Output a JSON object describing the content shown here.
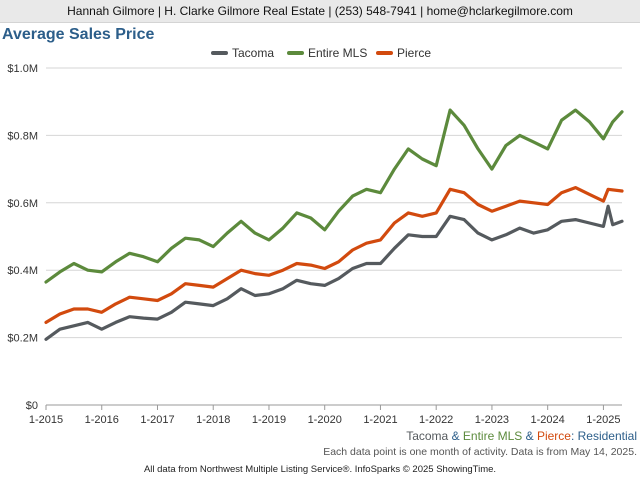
{
  "header": {
    "contact_line": "Hannah Gilmore | H. Clarke Gilmore Real Estate | (253) 548-7941 | home@hclarkegilmore.com"
  },
  "footer": {
    "subtitle_parts": [
      {
        "text": "Tacoma",
        "color": "#555a5e"
      },
      {
        "text": " & ",
        "color": "#2c5e8a"
      },
      {
        "text": "Entire MLS",
        "color": "#5c8a3c"
      },
      {
        "text": " & ",
        "color": "#2c5e8a"
      },
      {
        "text": "Pierce",
        "color": "#d24a0e"
      },
      {
        "text": ": Residential",
        "color": "#2c5e8a"
      }
    ],
    "note": "Each data point is one month of activity. Data is from May 14, 2025.",
    "source": "All data from Northwest Multiple Listing Service®. InfoSparks © 2025 ShowingTime."
  },
  "chart_data": {
    "type": "line",
    "title": "Average Sales Price",
    "ylim": [
      0,
      1000000
    ],
    "y_ticks": [
      0,
      200000,
      400000,
      600000,
      800000,
      1000000
    ],
    "y_tick_labels": [
      "$0",
      "$0.2M",
      "$0.4M",
      "$0.6M",
      "$0.8M",
      "$1.0M"
    ],
    "x_range": [
      "2015-01",
      "2025-05"
    ],
    "x_ticks": [
      "2015-01",
      "2016-01",
      "2017-01",
      "2018-01",
      "2019-01",
      "2020-01",
      "2021-01",
      "2022-01",
      "2023-01",
      "2024-01",
      "2025-01"
    ],
    "x_tick_labels": [
      "1-2015",
      "1-2016",
      "1-2017",
      "1-2018",
      "1-2019",
      "1-2020",
      "1-2021",
      "1-2022",
      "1-2023",
      "1-2024",
      "1-2025"
    ],
    "grid": true,
    "legend": "top-center",
    "series": [
      {
        "name": "Tacoma",
        "color": "#555a5e",
        "points": [
          [
            "2015-01",
            195000
          ],
          [
            "2015-04",
            225000
          ],
          [
            "2015-07",
            235000
          ],
          [
            "2015-10",
            245000
          ],
          [
            "2016-01",
            225000
          ],
          [
            "2016-04",
            245000
          ],
          [
            "2016-07",
            262000
          ],
          [
            "2016-10",
            258000
          ],
          [
            "2017-01",
            255000
          ],
          [
            "2017-04",
            275000
          ],
          [
            "2017-07",
            305000
          ],
          [
            "2017-10",
            300000
          ],
          [
            "2018-01",
            295000
          ],
          [
            "2018-04",
            315000
          ],
          [
            "2018-07",
            345000
          ],
          [
            "2018-10",
            325000
          ],
          [
            "2019-01",
            330000
          ],
          [
            "2019-04",
            345000
          ],
          [
            "2019-07",
            370000
          ],
          [
            "2019-10",
            360000
          ],
          [
            "2020-01",
            355000
          ],
          [
            "2020-04",
            375000
          ],
          [
            "2020-07",
            405000
          ],
          [
            "2020-10",
            420000
          ],
          [
            "2021-01",
            420000
          ],
          [
            "2021-04",
            465000
          ],
          [
            "2021-07",
            505000
          ],
          [
            "2021-10",
            500000
          ],
          [
            "2022-01",
            500000
          ],
          [
            "2022-04",
            560000
          ],
          [
            "2022-07",
            550000
          ],
          [
            "2022-10",
            510000
          ],
          [
            "2023-01",
            490000
          ],
          [
            "2023-04",
            505000
          ],
          [
            "2023-07",
            525000
          ],
          [
            "2023-10",
            510000
          ],
          [
            "2024-01",
            520000
          ],
          [
            "2024-04",
            545000
          ],
          [
            "2024-07",
            550000
          ],
          [
            "2024-10",
            540000
          ],
          [
            "2025-01",
            530000
          ],
          [
            "2025-02",
            590000
          ],
          [
            "2025-03",
            535000
          ],
          [
            "2025-05",
            545000
          ]
        ]
      },
      {
        "name": "Entire MLS",
        "color": "#5c8a3c",
        "points": [
          [
            "2015-01",
            365000
          ],
          [
            "2015-04",
            395000
          ],
          [
            "2015-07",
            420000
          ],
          [
            "2015-10",
            400000
          ],
          [
            "2016-01",
            395000
          ],
          [
            "2016-04",
            425000
          ],
          [
            "2016-07",
            450000
          ],
          [
            "2016-10",
            440000
          ],
          [
            "2017-01",
            425000
          ],
          [
            "2017-04",
            465000
          ],
          [
            "2017-07",
            495000
          ],
          [
            "2017-10",
            490000
          ],
          [
            "2018-01",
            470000
          ],
          [
            "2018-04",
            510000
          ],
          [
            "2018-07",
            545000
          ],
          [
            "2018-10",
            510000
          ],
          [
            "2019-01",
            490000
          ],
          [
            "2019-04",
            525000
          ],
          [
            "2019-07",
            570000
          ],
          [
            "2019-10",
            555000
          ],
          [
            "2020-01",
            520000
          ],
          [
            "2020-04",
            575000
          ],
          [
            "2020-07",
            620000
          ],
          [
            "2020-10",
            640000
          ],
          [
            "2021-01",
            630000
          ],
          [
            "2021-04",
            700000
          ],
          [
            "2021-07",
            760000
          ],
          [
            "2021-10",
            730000
          ],
          [
            "2022-01",
            710000
          ],
          [
            "2022-04",
            875000
          ],
          [
            "2022-07",
            830000
          ],
          [
            "2022-10",
            760000
          ],
          [
            "2023-01",
            700000
          ],
          [
            "2023-04",
            770000
          ],
          [
            "2023-07",
            800000
          ],
          [
            "2023-10",
            780000
          ],
          [
            "2024-01",
            760000
          ],
          [
            "2024-04",
            845000
          ],
          [
            "2024-07",
            875000
          ],
          [
            "2024-10",
            840000
          ],
          [
            "2025-01",
            790000
          ],
          [
            "2025-03",
            840000
          ],
          [
            "2025-05",
            870000
          ]
        ]
      },
      {
        "name": "Pierce",
        "color": "#d24a0e",
        "points": [
          [
            "2015-01",
            245000
          ],
          [
            "2015-04",
            270000
          ],
          [
            "2015-07",
            285000
          ],
          [
            "2015-10",
            285000
          ],
          [
            "2016-01",
            275000
          ],
          [
            "2016-04",
            300000
          ],
          [
            "2016-07",
            320000
          ],
          [
            "2016-10",
            315000
          ],
          [
            "2017-01",
            310000
          ],
          [
            "2017-04",
            330000
          ],
          [
            "2017-07",
            360000
          ],
          [
            "2017-10",
            355000
          ],
          [
            "2018-01",
            350000
          ],
          [
            "2018-04",
            375000
          ],
          [
            "2018-07",
            400000
          ],
          [
            "2018-10",
            390000
          ],
          [
            "2019-01",
            385000
          ],
          [
            "2019-04",
            400000
          ],
          [
            "2019-07",
            420000
          ],
          [
            "2019-10",
            415000
          ],
          [
            "2020-01",
            405000
          ],
          [
            "2020-04",
            425000
          ],
          [
            "2020-07",
            460000
          ],
          [
            "2020-10",
            480000
          ],
          [
            "2021-01",
            490000
          ],
          [
            "2021-04",
            540000
          ],
          [
            "2021-07",
            570000
          ],
          [
            "2021-10",
            560000
          ],
          [
            "2022-01",
            570000
          ],
          [
            "2022-04",
            640000
          ],
          [
            "2022-07",
            630000
          ],
          [
            "2022-10",
            595000
          ],
          [
            "2023-01",
            575000
          ],
          [
            "2023-04",
            590000
          ],
          [
            "2023-07",
            605000
          ],
          [
            "2023-10",
            600000
          ],
          [
            "2024-01",
            595000
          ],
          [
            "2024-04",
            630000
          ],
          [
            "2024-07",
            645000
          ],
          [
            "2024-10",
            625000
          ],
          [
            "2025-01",
            605000
          ],
          [
            "2025-02",
            640000
          ],
          [
            "2025-05",
            635000
          ]
        ]
      }
    ]
  }
}
